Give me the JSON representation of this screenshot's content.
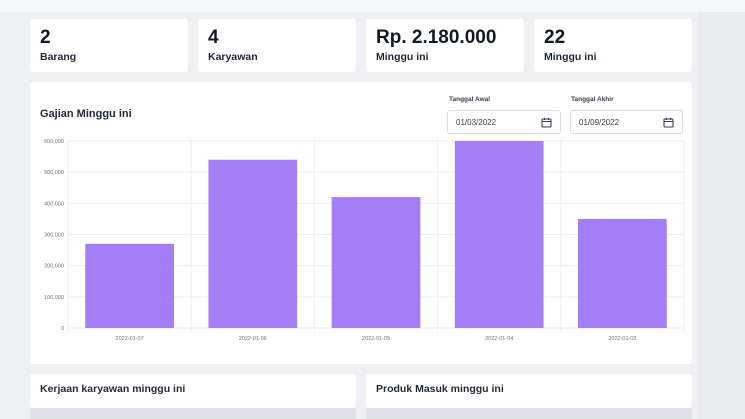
{
  "stats": [
    {
      "value": "2",
      "label": "Barang"
    },
    {
      "value": "4",
      "label": "Karyawan"
    },
    {
      "value": "Rp. 2.180.000",
      "label": "Minggu ini"
    },
    {
      "value": "22",
      "label": "Minggu ini"
    }
  ],
  "chart_section": {
    "title": "Gajian Minggu ini",
    "start_date_label": "Tanggal Awal",
    "start_date_value": "01/03/2022",
    "end_date_label": "Tanggal Akhir",
    "end_date_value": "01/09/2022",
    "icon": "calendar-icon"
  },
  "chart_data": {
    "type": "bar",
    "categories": [
      "2022-01-07",
      "2022-01-06",
      "2022-01-05",
      "2022-01-04",
      "2022-01-03"
    ],
    "values": [
      270000,
      540000,
      420000,
      600000,
      350000
    ],
    "ylim": [
      0,
      600000
    ],
    "yticks": [
      "0",
      "100,000",
      "200,000",
      "300,000",
      "400,000",
      "500,000",
      "600,000"
    ],
    "title": "",
    "xlabel": "",
    "ylabel": "",
    "grid": true,
    "bar_color": "#a37ef5"
  },
  "panels": {
    "left_title": "Kerjaan karyawan minggu ini",
    "right_title": "Produk Masuk minggu ini"
  }
}
